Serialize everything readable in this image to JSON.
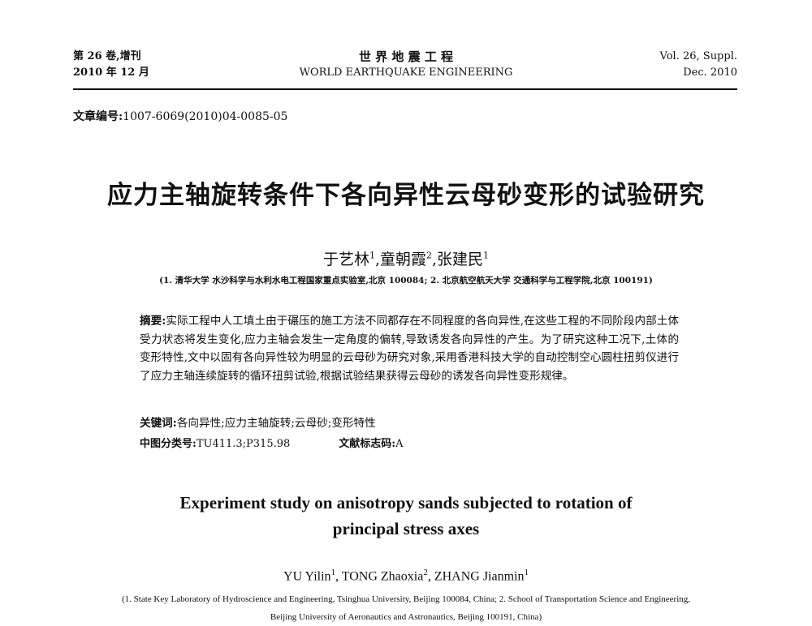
{
  "header": {
    "left": [
      "第 26 卷,增刊",
      "2010 年 12 月"
    ],
    "center": [
      "世 界 地 震 工 程",
      "WORLD EARTHQUAKE ENGINEERING"
    ],
    "right": [
      "Vol. 26, Suppl.",
      "Dec. 2010"
    ]
  },
  "article_number": {
    "label": "文章编号:",
    "value": "1007-6069(2010)04-0085-05"
  },
  "title": "应力主轴旋转条件下各向异性云母砂变形的试验研究",
  "authors": [
    {
      "name": "于艺林",
      "sup": "1"
    },
    {
      "name": ",童朝霞",
      "sup": "2"
    },
    {
      "name": ",张建民",
      "sup": "1"
    }
  ],
  "affiliation": "(1. 清华大学 水沙科学与水利水电工程国家重点实验室,北京 100084; 2. 北京航空航天大学 交通科学与工程学院,北京 100191)",
  "abstract": {
    "label": "摘要:",
    "text": "实际工程中人工填土由于碾压的施工方法不同都存在不同程度的各向异性,在这些工程的不同阶段内部土体受力状态将发生变化,应力主轴会发生一定角度的偏转,导致诱发各向异性的产生。为了研究这种工况下,土体的变形特性,文中以固有各向异性较为明显的云母砂为研究对象,采用香港科技大学的自动控制空心圆柱扭剪仪进行了应力主轴连续旋转的循环扭剪试验,根据试验结果获得云母砂的诱发各向异性变形规律。"
  },
  "keywords": {
    "label": "关键词:",
    "text": "各向异性;应力主轴旋转;云母砂;变形特性"
  },
  "classification": {
    "label": "中图分类号:",
    "text": "TU411.3;P315.98"
  },
  "document_code": {
    "label": "文献标志码:",
    "text": "A"
  },
  "english_title": [
    "Experiment study on anisotropy sands subjected to rotation of",
    "principal stress axes"
  ],
  "english_authors": [
    {
      "name": "YU Yilin",
      "sup": "1"
    },
    {
      "name": ", TONG Zhaoxia",
      "sup": "2"
    },
    {
      "name": ", ZHANG Jianmin",
      "sup": "1"
    }
  ],
  "english_affiliation": "(1. State Key Laboratory of Hydroscience and Engineering, Tsinghua University, Beijing 100084, China; 2. School of Transportation Science and Engineering, Beijing University of Aeronautics and Astronautics, Beijing 100191, China)"
}
